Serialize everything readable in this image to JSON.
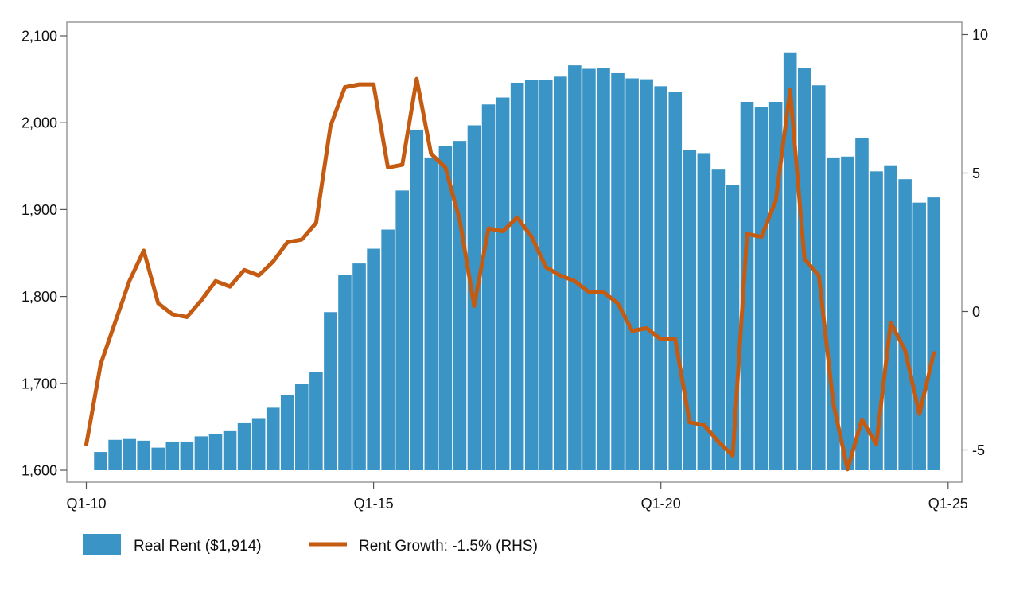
{
  "chart_data": {
    "type": "bar+line",
    "x_ticks": [
      "Q1-10",
      "Q1-15",
      "Q1-20",
      "Q1-25"
    ],
    "left_axis": {
      "ylim": [
        1600,
        2100
      ],
      "ticks": [
        1600,
        1700,
        1800,
        1900,
        2000,
        2100
      ],
      "tick_labels": [
        "1,600",
        "1,700",
        "1,800",
        "1,900",
        "2,000",
        "2,100"
      ]
    },
    "right_axis": {
      "ylim": [
        -5.85,
        10.35
      ],
      "ticks": [
        -5,
        0,
        5,
        10
      ],
      "tick_labels": [
        "-5",
        "0",
        "5",
        "10"
      ]
    },
    "series": [
      {
        "name": "Real Rent ($1,914)",
        "type": "bar",
        "axis": "left",
        "color": "#3a95c6",
        "x_start": 1,
        "values": [
          1621,
          1635,
          1636,
          1634,
          1626,
          1633,
          1633,
          1639,
          1642,
          1645,
          1655,
          1660,
          1672,
          1687,
          1699,
          1713,
          1782,
          1825,
          1838,
          1855,
          1877,
          1922,
          1992,
          1960,
          1973,
          1979,
          1997,
          2021,
          2029,
          2046,
          2049,
          2049,
          2053,
          2066,
          2062,
          2063,
          2057,
          2051,
          2050,
          2042,
          2035,
          1969,
          1965,
          1946,
          1928,
          2024,
          2018,
          2024,
          2081,
          2063,
          2043,
          1960,
          1961,
          1982,
          1944,
          1951,
          1935,
          1908,
          1914
        ]
      },
      {
        "name": "Rent Growth: -1.5% (RHS)",
        "type": "line",
        "axis": "right",
        "color": "#c55a11",
        "x_start": 0,
        "values": [
          -4.8,
          -1.9,
          -0.4,
          1.1,
          2.2,
          0.3,
          -0.1,
          -0.2,
          0.4,
          1.1,
          0.9,
          1.5,
          1.3,
          1.8,
          2.5,
          2.6,
          3.2,
          6.7,
          8.1,
          8.2,
          8.2,
          5.2,
          5.3,
          8.4,
          5.7,
          5.2,
          3.3,
          0.2,
          3.0,
          2.9,
          3.4,
          2.7,
          1.6,
          1.3,
          1.1,
          0.7,
          0.7,
          0.3,
          -0.7,
          -0.6,
          -1.0,
          -1.0,
          -4.0,
          -4.1,
          -4.7,
          -5.2,
          2.8,
          2.7,
          4.0,
          8.0,
          1.9,
          1.3,
          -3.3,
          -5.7,
          -3.9,
          -4.8,
          -0.4,
          -1.4,
          -3.7,
          -1.5
        ]
      }
    ],
    "legend": {
      "position": "bottom-left",
      "items": [
        {
          "label": "Real Rent ($1,914)",
          "kind": "bar",
          "color": "#3a95c6"
        },
        {
          "label": "Rent Growth: -1.5% (RHS)",
          "kind": "line",
          "color": "#c55a11"
        }
      ]
    },
    "grid": false
  }
}
